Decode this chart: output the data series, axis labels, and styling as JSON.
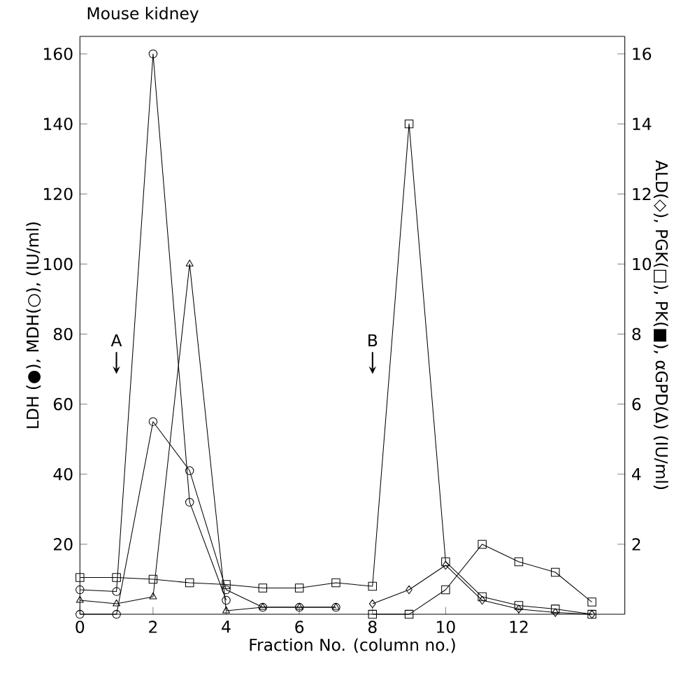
{
  "chart_data": {
    "type": "line",
    "title": "Mouse kidney",
    "xlabel": "Fraction No. (column no.)",
    "ylabel": "LDH (●), MDH(○), (IU/ml)",
    "y2label": "ALD(◇), PGK(□), PK(■), αGPD(Δ) (IU/ml)",
    "xlim": [
      0,
      14.9
    ],
    "xticks": [
      0,
      2,
      4,
      6,
      8,
      10,
      12
    ],
    "ylim": [
      0,
      165
    ],
    "yticks": [
      20,
      40,
      60,
      80,
      100,
      120,
      140,
      160
    ],
    "y2lim": [
      0,
      16.5
    ],
    "y2ticks": [
      2,
      4,
      6,
      8,
      10,
      12,
      14,
      16
    ],
    "line_style": "solid",
    "annotations": [
      "A",
      "B"
    ],
    "series": [
      {
        "color": "#000000",
        "marker": "circle",
        "x": [
          0,
          1,
          2,
          3,
          4,
          5,
          6,
          7
        ],
        "values": [
          0,
          0,
          55,
          41,
          7,
          2,
          2,
          2
        ]
      },
      {
        "color": "#000000",
        "marker": "circle",
        "x": [
          0,
          1,
          2,
          3,
          4
        ],
        "values": [
          7,
          6.5,
          160,
          32,
          4
        ]
      },
      {
        "color": "#000000",
        "marker": "diamond",
        "axis": "y2",
        "x": [
          8,
          9,
          10,
          11,
          12,
          13,
          14
        ],
        "values": [
          0.3,
          0.7,
          1.4,
          0.4,
          0.15,
          0.05,
          0
        ]
      },
      {
        "color": "#000000",
        "marker": "square",
        "axis": "y2",
        "x": [
          0,
          1,
          2,
          3,
          4,
          5,
          6,
          7,
          8,
          9,
          10,
          11,
          12,
          13,
          14
        ],
        "values": [
          1.05,
          1.05,
          1.0,
          0.9,
          0.85,
          0.75,
          0.75,
          0.9,
          0.8,
          14,
          1.5,
          0.5,
          0.25,
          0.15,
          0
        ]
      },
      {
        "color": "#000000",
        "marker": "square",
        "axis": "y2",
        "x": [
          8,
          9,
          10,
          11,
          12,
          13,
          14
        ],
        "values": [
          0,
          0,
          0.7,
          2.0,
          1.5,
          1.2,
          0.35
        ]
      },
      {
        "color": "#000000",
        "marker": "triangle",
        "axis": "y2",
        "x": [
          0,
          1,
          2,
          3,
          4,
          5,
          6,
          7
        ],
        "values": [
          0.4,
          0.3,
          0.5,
          10,
          0.1,
          0.2,
          0.2,
          0.2
        ]
      }
    ]
  }
}
